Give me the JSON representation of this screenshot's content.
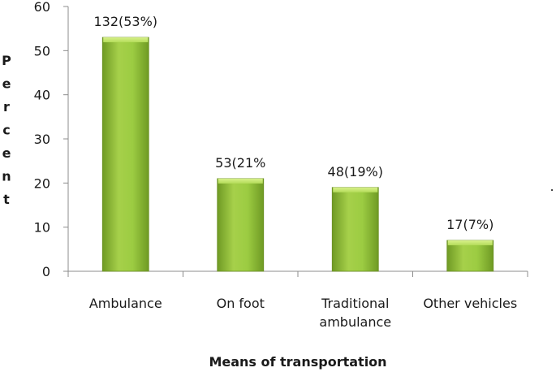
{
  "chart_data": {
    "type": "bar",
    "title": "",
    "xlabel": "Means of transportation",
    "ylabel": "Percent",
    "ylim": [
      0,
      60
    ],
    "yticks": [
      0,
      10,
      20,
      30,
      40,
      50,
      60
    ],
    "grid": false,
    "categories": [
      [
        "Ambulance"
      ],
      [
        "On foot"
      ],
      [
        "Traditional",
        "ambulance"
      ],
      [
        "Other vehicles"
      ]
    ],
    "values": [
      53,
      21,
      19,
      7
    ],
    "data_labels": [
      "132(53%)",
      "53(21%",
      "48(19%)",
      "17(7%)"
    ],
    "bar_color": "#8bc34a",
    "stray_mark": "."
  }
}
